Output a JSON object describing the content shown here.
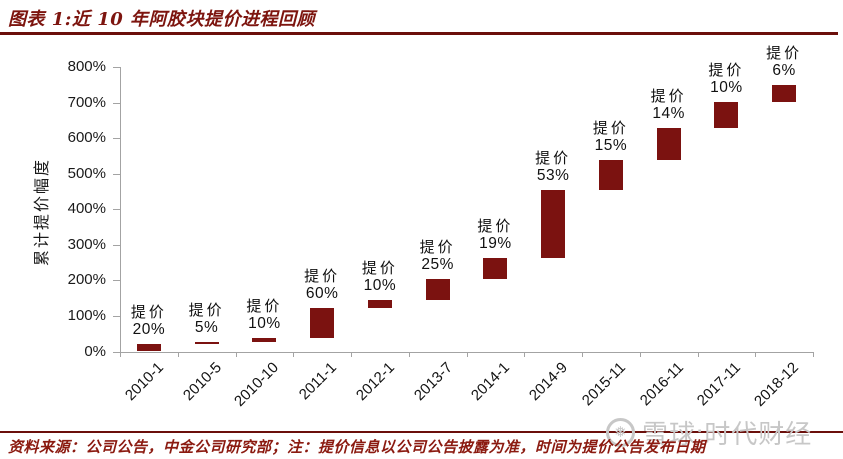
{
  "header": {
    "title": "图表 1:近 10 年阿胶块提价进程回顾"
  },
  "footer": {
    "source_note": "资料来源：公司公告，中金公司研究部；注：提价信息以公司公告披露为准，时间为提价公告发布日期"
  },
  "watermark": {
    "logo": "xueqiu-snowball-icon",
    "text": "雪球:时代财经"
  },
  "colors": {
    "bar": "#7b1210",
    "title_red": "#7d150f",
    "rule_red": "#6b0f0b",
    "source_red": "#8b1a10",
    "axis_gray": "#a3a3a3",
    "text_black": "#111111",
    "watermark_gray": "#c7c7c7"
  },
  "chart_data": {
    "type": "bar",
    "subtype": "floating-cumulative-waterfall",
    "title": "图表 1:近 10 年阿胶块提价进程回顾",
    "xlabel": "",
    "ylabel": "累计提价幅度",
    "ylim": [
      0,
      800
    ],
    "ytick_labels": [
      "0%",
      "100%",
      "200%",
      "300%",
      "400%",
      "500%",
      "600%",
      "700%",
      "800%"
    ],
    "grid": false,
    "legend": false,
    "bar_label_prefix": "提价",
    "categories": [
      "2010-1",
      "2010-5",
      "2010-10",
      "2011-1",
      "2012-1",
      "2013-7",
      "2014-1",
      "2014-9",
      "2015-11",
      "2016-11",
      "2017-11",
      "2018-12"
    ],
    "increases_pct": [
      20,
      5,
      10,
      60,
      10,
      25,
      19,
      53,
      15,
      14,
      10,
      6
    ],
    "bars": [
      {
        "category": "2010-1",
        "label_line1": "提价",
        "label_line2": "20%",
        "increase_pct": 20,
        "cum_start_pct": 0,
        "cum_end_pct": 20
      },
      {
        "category": "2010-5",
        "label_line1": "提价",
        "label_line2": "5%",
        "increase_pct": 5,
        "cum_start_pct": 20,
        "cum_end_pct": 26
      },
      {
        "category": "2010-10",
        "label_line1": "提价",
        "label_line2": "10%",
        "increase_pct": 10,
        "cum_start_pct": 26,
        "cum_end_pct": 38.6
      },
      {
        "category": "2011-1",
        "label_line1": "提价",
        "label_line2": "60%",
        "increase_pct": 60,
        "cum_start_pct": 38.6,
        "cum_end_pct": 121.8
      },
      {
        "category": "2012-1",
        "label_line1": "提价",
        "label_line2": "10%",
        "increase_pct": 10,
        "cum_start_pct": 121.8,
        "cum_end_pct": 143.9
      },
      {
        "category": "2013-7",
        "label_line1": "提价",
        "label_line2": "25%",
        "increase_pct": 25,
        "cum_start_pct": 143.9,
        "cum_end_pct": 204.9
      },
      {
        "category": "2014-1",
        "label_line1": "提价",
        "label_line2": "19%",
        "increase_pct": 19,
        "cum_start_pct": 204.9,
        "cum_end_pct": 262.9
      },
      {
        "category": "2014-9",
        "label_line1": "提价",
        "label_line2": "53%",
        "increase_pct": 53,
        "cum_start_pct": 262.9,
        "cum_end_pct": 455.2
      },
      {
        "category": "2015-11",
        "label_line1": "提价",
        "label_line2": "15%",
        "increase_pct": 15,
        "cum_start_pct": 455.2,
        "cum_end_pct": 538.4
      },
      {
        "category": "2016-11",
        "label_line1": "提价",
        "label_line2": "14%",
        "increase_pct": 14,
        "cum_start_pct": 538.4,
        "cum_end_pct": 627.8
      },
      {
        "category": "2017-11",
        "label_line1": "提价",
        "label_line2": "10%",
        "increase_pct": 10,
        "cum_start_pct": 627.8,
        "cum_end_pct": 700.6
      },
      {
        "category": "2018-12",
        "label_line1": "提价",
        "label_line2": "6%",
        "increase_pct": 6,
        "cum_start_pct": 700.6,
        "cum_end_pct": 748.6
      }
    ]
  }
}
